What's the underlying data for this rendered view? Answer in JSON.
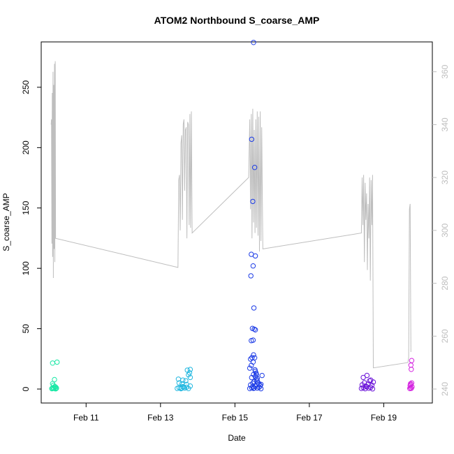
{
  "chart_data": {
    "type": "scatter",
    "title": "ATOM2 Northbound S_coarse_AMP",
    "xlabel": "Date",
    "ylabel": "S_coarse_AMP",
    "x_ticks": [
      {
        "x": 11,
        "label": "Feb 11"
      },
      {
        "x": 13,
        "label": "Feb 13"
      },
      {
        "x": 15,
        "label": "Feb 15"
      },
      {
        "x": 17,
        "label": "Feb 17"
      },
      {
        "x": 19,
        "label": "Feb 19"
      }
    ],
    "xlim": [
      10.0,
      20.1
    ],
    "ylim": [
      0,
      276
    ],
    "y_ticks": [
      0,
      50,
      100,
      150,
      200,
      250
    ],
    "y2lim": [
      240,
      366
    ],
    "y2_ticks": [
      240,
      260,
      280,
      300,
      320,
      340,
      360
    ],
    "y2_color": "#bebebe",
    "grid": false,
    "legend": "none",
    "series": [
      {
        "color": "#1ae8a6",
        "x": [
          10.08,
          10.1,
          10.12,
          10.14,
          10.16,
          10.18,
          10.2,
          10.1,
          10.15,
          10.2,
          10.12,
          10.18,
          10.08,
          10.1,
          10.22
        ],
        "y": [
          0.3,
          0.8,
          1.2,
          0.5,
          2.1,
          0.2,
          0.9,
          4.5,
          7.8,
          0.6,
          3.1,
          1.7,
          0.4,
          21.5,
          22.3
        ]
      },
      {
        "color": "#23b8e0",
        "x": [
          13.45,
          13.5,
          13.55,
          13.6,
          13.65,
          13.7,
          13.75,
          13.8,
          13.5,
          13.6,
          13.7,
          13.8,
          13.48,
          13.58,
          13.68,
          13.78,
          13.8,
          13.75,
          13.72,
          13.55,
          13.62
        ],
        "y": [
          0.5,
          1.2,
          0.3,
          2.0,
          0.8,
          1.5,
          0.4,
          2.5,
          5.1,
          7.4,
          3.8,
          9.6,
          8.2,
          4.4,
          6.9,
          13.5,
          16.2,
          11.8,
          15.7,
          0.9,
          1.7
        ]
      },
      {
        "color": "#1d3ce6",
        "x": [
          15.4,
          15.45,
          15.5,
          15.55,
          15.6,
          15.65,
          15.7,
          15.42,
          15.48,
          15.52,
          15.58,
          15.62,
          15.68,
          15.45,
          15.5,
          15.55,
          15.6,
          15.65,
          15.4,
          15.44,
          15.49,
          15.53,
          15.57,
          15.42,
          15.46,
          15.5,
          15.54,
          15.58,
          15.44,
          15.49,
          15.52,
          15.55,
          15.47,
          15.51,
          15.43,
          15.49,
          15.55,
          15.44,
          15.48,
          15.53,
          15.45,
          15.5,
          15.55,
          15.6,
          15.7,
          15.73,
          15.48,
          15.52
        ],
        "y": [
          0.4,
          1.1,
          0.6,
          2.2,
          0.8,
          1.5,
          0.3,
          3.4,
          4.8,
          6.2,
          7.9,
          5.3,
          2.7,
          9.5,
          12.1,
          14.7,
          8.8,
          4.1,
          17.3,
          19.6,
          22.4,
          25.9,
          13.2,
          24.8,
          26.1,
          28.3,
          15.9,
          11.7,
          40.1,
          40.5,
          49.6,
          49.0,
          50.2,
          67.2,
          93.8,
          102.0,
          110.3,
          111.6,
          155.4,
          183.6,
          206.9,
          287.1,
          10.4,
          6.5,
          3.9,
          11.2,
          2.0,
          0.9
        ]
      },
      {
        "color": "#6a12d8",
        "x": [
          18.4,
          18.45,
          18.5,
          18.55,
          18.6,
          18.65,
          18.7,
          18.42,
          18.48,
          18.52,
          18.58,
          18.62,
          18.68,
          18.45,
          18.55,
          18.65,
          18.72
        ],
        "y": [
          0.5,
          1.2,
          0.3,
          1.8,
          0.7,
          1.4,
          0.2,
          3.5,
          5.2,
          2.4,
          4.1,
          6.8,
          3.2,
          9.6,
          11.3,
          7.4,
          5.8
        ]
      },
      {
        "color": "#d420e0",
        "x": [
          19.7,
          19.72,
          19.74,
          19.76,
          19.71,
          19.73,
          19.75,
          19.72,
          19.74,
          19.73,
          19.75
        ],
        "y": [
          0.4,
          1.1,
          0.6,
          1.8,
          2.9,
          3.6,
          5.1,
          4.4,
          16.3,
          19.8,
          23.6
        ]
      }
    ],
    "secondary_line": {
      "color": "#bebebe",
      "x": [
        10.06,
        10.07,
        10.08,
        10.09,
        10.1,
        10.11,
        10.12,
        10.13,
        10.14,
        10.15,
        10.16,
        10.17,
        10.18,
        13.47,
        13.49,
        13.51,
        13.53,
        13.55,
        13.57,
        13.59,
        13.61,
        13.63,
        13.65,
        13.67,
        13.69,
        13.71,
        13.73,
        13.75,
        13.77,
        13.79,
        13.81,
        13.83,
        13.85,
        15.37,
        15.4,
        15.42,
        15.44,
        15.46,
        15.48,
        15.5,
        15.52,
        15.54,
        15.56,
        15.58,
        15.6,
        15.62,
        15.64,
        15.66,
        15.68,
        15.7,
        15.72,
        15.75,
        18.4,
        18.42,
        18.44,
        18.46,
        18.48,
        18.5,
        18.52,
        18.54,
        18.56,
        18.58,
        18.6,
        18.62,
        18.64,
        18.66,
        18.68,
        18.7,
        18.72,
        19.65,
        19.67,
        19.69,
        19.71,
        19.73
      ],
      "y": [
        340,
        342,
        295,
        352,
        290,
        360,
        282,
        355,
        293,
        363,
        288,
        364,
        297,
        286,
        319,
        321,
        300,
        333,
        336,
        304,
        340,
        342,
        315,
        338,
        339,
        297,
        341,
        340,
        302,
        344,
        301,
        345,
        299,
        320,
        342,
        308,
        344,
        297,
        346,
        303,
        338,
        299,
        342,
        301,
        345,
        298,
        343,
        292,
        345,
        296,
        339,
        293,
        299,
        320,
        302,
        321,
        288,
        318,
        304,
        314,
        285,
        310,
        297,
        320,
        281,
        319,
        302,
        321,
        248,
        250,
        252,
        308,
        310,
        254
      ]
    }
  }
}
